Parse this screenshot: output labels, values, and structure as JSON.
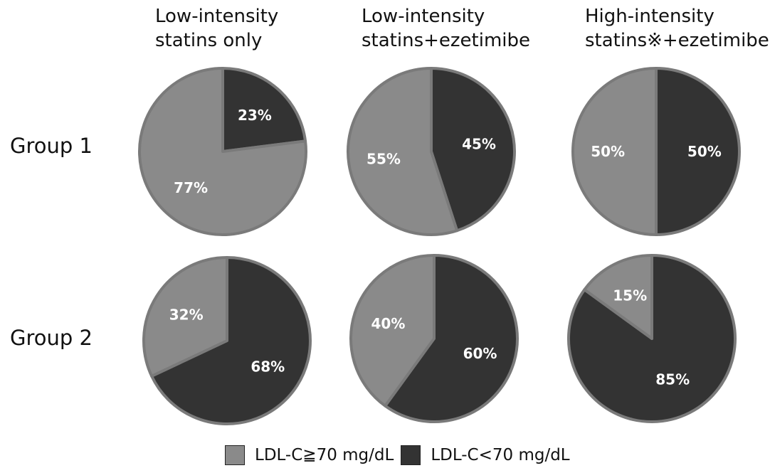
{
  "columns": [
    {
      "line1": "Low-intensity",
      "line2": "statins only"
    },
    {
      "line1": "Low-intensity",
      "line2": "statins+ezetimibe"
    },
    {
      "line1": "High-intensity",
      "line2": "statins※+ezetimibe"
    }
  ],
  "rows": [
    "Group 1",
    "Group 2"
  ],
  "legend": [
    {
      "label": "LDL-C≧70 mg/dL",
      "color": "#8a8a8a"
    },
    {
      "label": "LDL-C<70 mg/dL",
      "color": "#333333"
    }
  ],
  "colors": {
    "light": "#8a8a8a",
    "dark": "#333333",
    "border": "#7a7a7a"
  },
  "chart_data": [
    {
      "type": "pie",
      "row": "Group 1",
      "column": "Low-intensity statins only",
      "slices": [
        {
          "label": "LDL-C<70 mg/dL",
          "value": 23,
          "text": "23%"
        },
        {
          "label": "LDL-C≧70 mg/dL",
          "value": 77,
          "text": "77%"
        }
      ]
    },
    {
      "type": "pie",
      "row": "Group 1",
      "column": "Low-intensity statins+ezetimibe",
      "slices": [
        {
          "label": "LDL-C<70 mg/dL",
          "value": 45,
          "text": "45%"
        },
        {
          "label": "LDL-C≧70 mg/dL",
          "value": 55,
          "text": "55%"
        }
      ]
    },
    {
      "type": "pie",
      "row": "Group 1",
      "column": "High-intensity statins※+ezetimibe",
      "slices": [
        {
          "label": "LDL-C<70 mg/dL",
          "value": 50,
          "text": "50%"
        },
        {
          "label": "LDL-C≧70 mg/dL",
          "value": 50,
          "text": "50%"
        }
      ]
    },
    {
      "type": "pie",
      "row": "Group 2",
      "column": "Low-intensity statins only",
      "slices": [
        {
          "label": "LDL-C<70 mg/dL",
          "value": 68,
          "text": "68%"
        },
        {
          "label": "LDL-C≧70 mg/dL",
          "value": 32,
          "text": "32%"
        }
      ]
    },
    {
      "type": "pie",
      "row": "Group 2",
      "column": "Low-intensity statins+ezetimibe",
      "slices": [
        {
          "label": "LDL-C<70 mg/dL",
          "value": 60,
          "text": "60%"
        },
        {
          "label": "LDL-C≧70 mg/dL",
          "value": 40,
          "text": "40%"
        }
      ]
    },
    {
      "type": "pie",
      "row": "Group 2",
      "column": "High-intensity statins※+ezetimibe",
      "slices": [
        {
          "label": "LDL-C<70 mg/dL",
          "value": 85,
          "text": "85%"
        },
        {
          "label": "LDL-C≧70 mg/dL",
          "value": 15,
          "text": "15%"
        }
      ]
    }
  ]
}
